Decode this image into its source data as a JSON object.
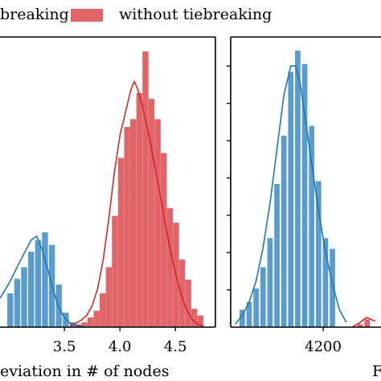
{
  "colors": {
    "blue": "#1f77b4",
    "red": "#d62728",
    "blue_fill": "#5a9ccc",
    "red_fill": "#e06468"
  },
  "legend": {
    "entries": [
      {
        "label": "with tiebreaking",
        "visible_text": "breaking",
        "color": "#5a9ccc"
      },
      {
        "label": "without tiebreaking",
        "visible_text": "without tiebreaking",
        "color": "#e06468"
      }
    ]
  },
  "chart_data": [
    {
      "type": "bar",
      "xlabel": "Deviation in # of nodes",
      "visible_xlabel": "eviation in # of nodes",
      "ylabel": "",
      "xlim": [
        2.92,
        4.86
      ],
      "ylim": [
        0,
        0.3
      ],
      "x_ticks": [
        3.5,
        4.0,
        4.5
      ],
      "x_tick_labels": [
        "3.5",
        "4.0",
        "4.5"
      ],
      "bin_width": 0.0625,
      "series": [
        {
          "name": "with tiebreaking",
          "color": "#5a9ccc",
          "bin_centers": [
            3.0125,
            3.075,
            3.1375,
            3.2,
            3.2625,
            3.325,
            3.3875,
            3.45,
            3.5125,
            3.575
          ],
          "values": [
            0.035,
            0.05,
            0.062,
            0.078,
            0.09,
            0.098,
            0.085,
            0.044,
            0.015,
            0.005
          ],
          "kde_x": [
            2.92,
            3.0,
            3.1,
            3.2,
            3.25,
            3.3,
            3.35,
            3.4,
            3.45,
            3.5,
            3.55,
            3.6,
            3.65,
            3.7
          ],
          "kde_y": [
            0.03,
            0.045,
            0.068,
            0.09,
            0.094,
            0.08,
            0.06,
            0.038,
            0.02,
            0.01,
            0.004,
            0.002,
            0.001,
            0.0
          ]
        },
        {
          "name": "without tiebreaking",
          "color": "#e06468",
          "bin_centers": [
            3.57,
            3.625,
            3.68,
            3.735,
            3.79,
            3.845,
            3.9,
            3.955,
            4.01,
            4.065,
            4.12,
            4.175,
            4.23,
            4.285,
            4.34,
            4.395,
            4.45,
            4.505,
            4.56,
            4.615,
            4.67,
            4.725
          ],
          "values": [
            0.001,
            0.003,
            0.005,
            0.01,
            0.017,
            0.035,
            0.062,
            0.115,
            0.175,
            0.207,
            0.215,
            0.242,
            0.285,
            0.236,
            0.215,
            0.18,
            0.123,
            0.108,
            0.07,
            0.049,
            0.019,
            0.012
          ],
          "kde_x": [
            3.55,
            3.6,
            3.65,
            3.7,
            3.75,
            3.8,
            3.85,
            3.9,
            3.95,
            4.0,
            4.05,
            4.1,
            4.13,
            4.16,
            4.2,
            4.25,
            4.3,
            4.35,
            4.4,
            4.45,
            4.5,
            4.55,
            4.6,
            4.65,
            4.7,
            4.75
          ],
          "kde_y": [
            0.001,
            0.004,
            0.007,
            0.012,
            0.022,
            0.04,
            0.07,
            0.112,
            0.16,
            0.198,
            0.222,
            0.246,
            0.254,
            0.246,
            0.23,
            0.205,
            0.175,
            0.145,
            0.112,
            0.082,
            0.056,
            0.034,
            0.018,
            0.008,
            0.003,
            0.001
          ]
        }
      ]
    },
    {
      "type": "bar",
      "xlabel": "",
      "visible_xlabel": "F",
      "ylabel": "",
      "xlim": [
        4040,
        4300
      ],
      "ylim": [
        0,
        0.3
      ],
      "x_ticks": [
        4200
      ],
      "x_tick_labels": [
        "4200"
      ],
      "bin_width": 11,
      "series": [
        {
          "name": "with tiebreaking",
          "color": "#5a9ccc",
          "bin_centers": [
            4060,
            4072,
            4084,
            4096,
            4108,
            4120,
            4132,
            4144,
            4156,
            4168,
            4180,
            4192,
            4204,
            4216
          ],
          "values": [
            0.018,
            0.026,
            0.04,
            0.062,
            0.092,
            0.148,
            0.198,
            0.264,
            0.286,
            0.272,
            0.208,
            0.151,
            0.092,
            0.081
          ],
          "kde_x": [
            4048,
            4060,
            4072,
            4084,
            4096,
            4108,
            4120,
            4132,
            4144,
            4152,
            4160,
            4168,
            4180,
            4192,
            4204,
            4216,
            4228,
            4240
          ],
          "kde_y": [
            0.003,
            0.012,
            0.026,
            0.048,
            0.082,
            0.128,
            0.184,
            0.24,
            0.27,
            0.27,
            0.252,
            0.22,
            0.17,
            0.12,
            0.078,
            0.045,
            0.018,
            0.005
          ]
        },
        {
          "name": "without tiebreaking",
          "color": "#e06468",
          "bin_centers": [
            4264,
            4276
          ],
          "values": [
            0.003,
            0.008
          ],
          "kde_x": [
            4250,
            4262,
            4275,
            4290
          ],
          "kde_y": [
            0.0,
            0.004,
            0.01,
            0.006
          ]
        }
      ]
    }
  ]
}
